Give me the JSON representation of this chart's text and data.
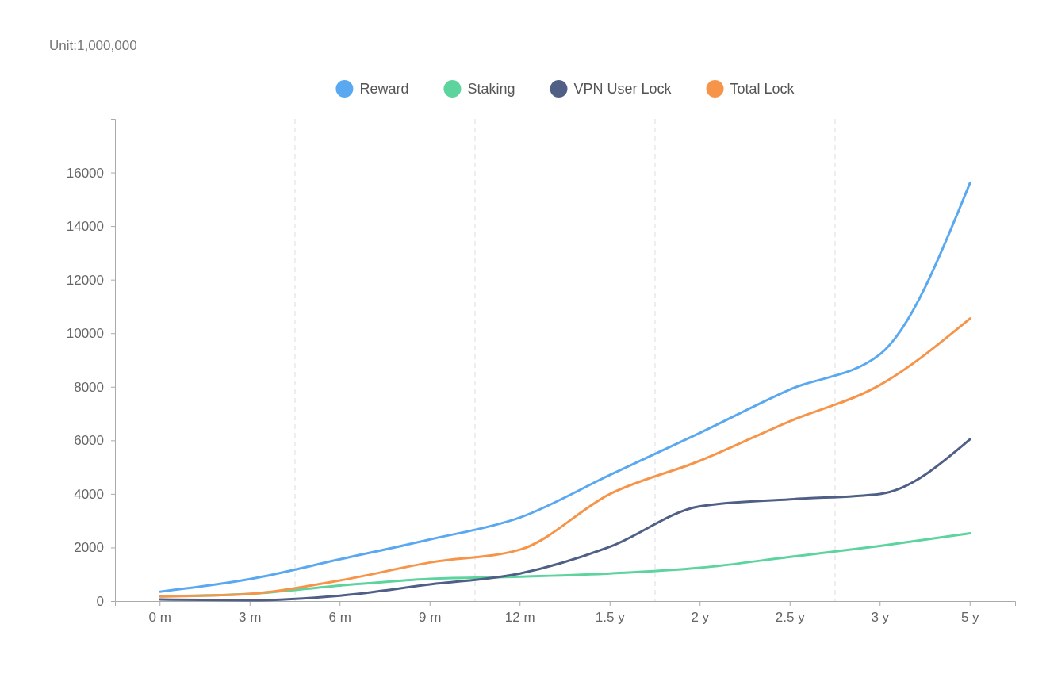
{
  "chart_data": {
    "type": "line",
    "subtitle": "Unit:1,000,000",
    "categories": [
      "0 m",
      "3 m",
      "6 m",
      "9 m",
      "12 m",
      "1.5 y",
      "2 y",
      "2.5 y",
      "3 y",
      "5 y"
    ],
    "series": [
      {
        "name": "Reward",
        "color": "#5aa9f0",
        "values": [
          350,
          820,
          1560,
          2300,
          3120,
          4710,
          6280,
          7900,
          9220,
          15620
        ]
      },
      {
        "name": "Staking",
        "color": "#5dd39e",
        "values": [
          180,
          270,
          580,
          830,
          910,
          1030,
          1240,
          1650,
          2060,
          2530
        ]
      },
      {
        "name": "VPN User Lock",
        "color": "#4f5f86",
        "values": [
          60,
          30,
          200,
          620,
          1030,
          2030,
          3540,
          3800,
          4000,
          6040
        ]
      },
      {
        "name": "Total Lock",
        "color": "#f6954a",
        "values": [
          170,
          270,
          770,
          1440,
          1920,
          4000,
          5240,
          6720,
          8070,
          10550
        ]
      }
    ],
    "ylim": [
      0,
      18000
    ],
    "yticks": [
      0,
      2000,
      4000,
      6000,
      8000,
      10000,
      12000,
      14000,
      16000
    ],
    "grid": "x",
    "legend": "top",
    "marker": "none",
    "line_style": "solid"
  }
}
